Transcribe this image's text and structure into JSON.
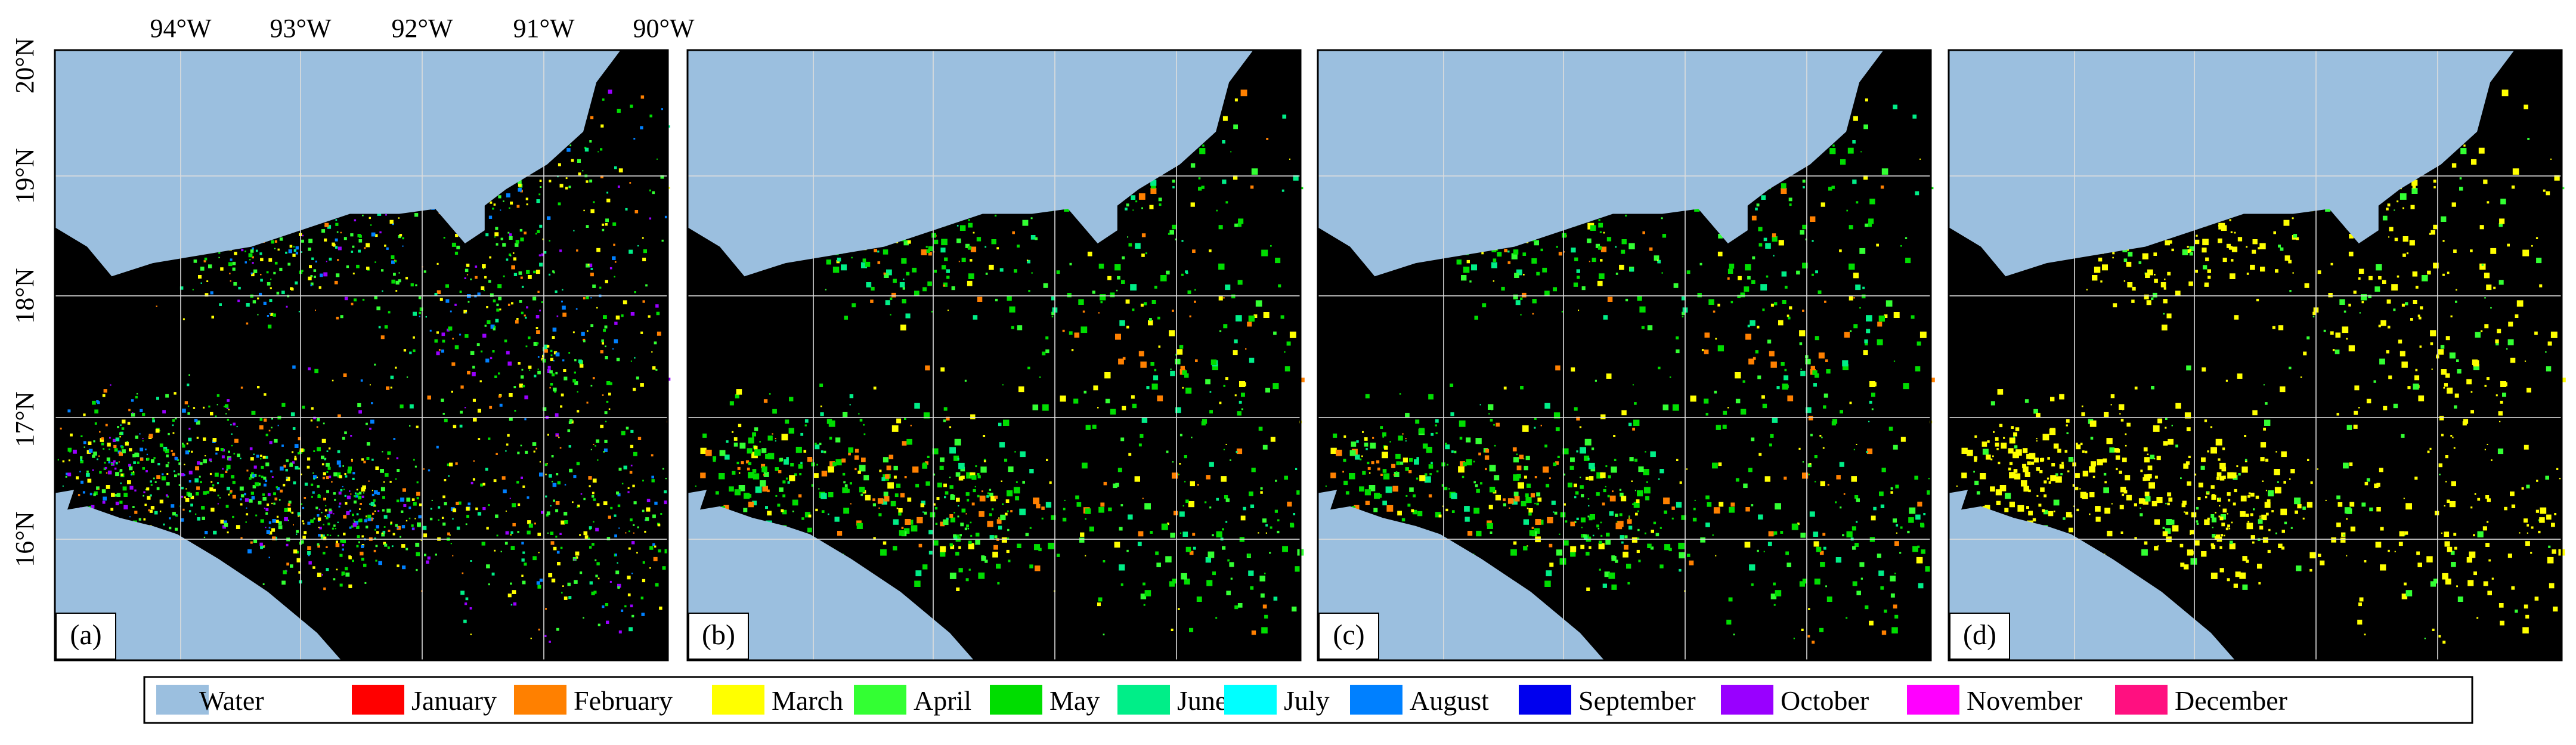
{
  "map": {
    "lon_labels": [
      "94°W",
      "93°W",
      "92°W",
      "91°W",
      "90°W"
    ],
    "lat_labels": [
      "20°N",
      "19°N",
      "18°N",
      "17°N",
      "16°N"
    ],
    "panels": [
      "(a)",
      "(b)",
      "(c)",
      "(d)"
    ],
    "legend": [
      {
        "label": "Water",
        "color": "#9bbfdf"
      },
      {
        "label": "January",
        "color": "#ff0000"
      },
      {
        "label": "February",
        "color": "#ff8000"
      },
      {
        "label": "March",
        "color": "#ffff00"
      },
      {
        "label": "April",
        "color": "#33ff33"
      },
      {
        "label": "May",
        "color": "#00dd00"
      },
      {
        "label": "June",
        "color": "#00ee88"
      },
      {
        "label": "July",
        "color": "#00ffff"
      },
      {
        "label": "August",
        "color": "#0080ff"
      },
      {
        "label": "September",
        "color": "#0000ee"
      },
      {
        "label": "October",
        "color": "#9900ff"
      },
      {
        "label": "November",
        "color": "#ff00ff"
      },
      {
        "label": "December",
        "color": "#ff1080"
      }
    ]
  }
}
